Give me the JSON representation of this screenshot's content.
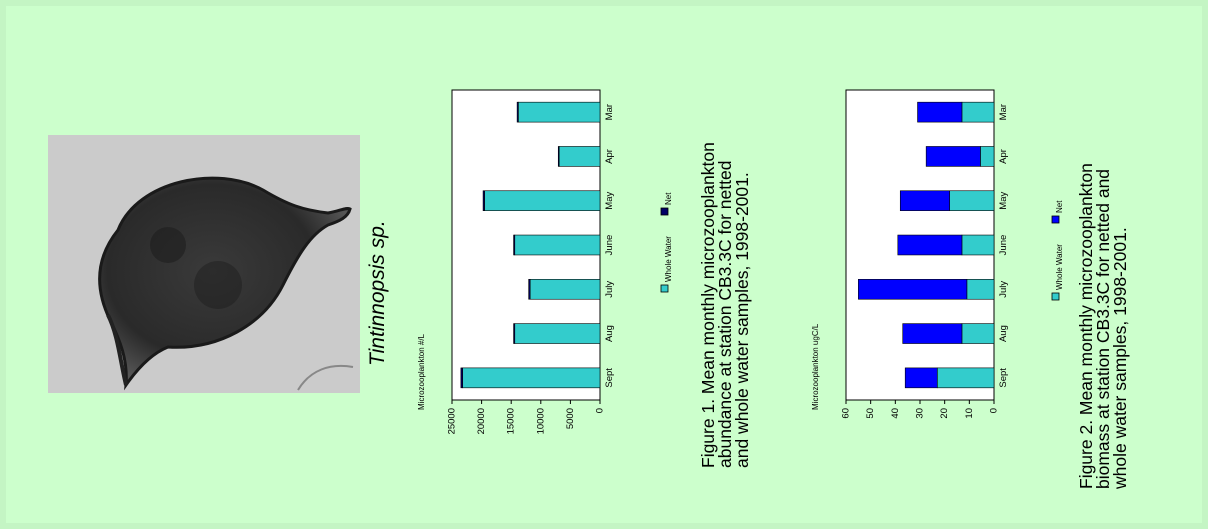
{
  "species_label": "Tintinnopsis sp.",
  "figure1": {
    "caption_lines": [
      "Figure 1. Mean monthly microzooplankton",
      "abundance at station CB3.3C for netted",
      "and whole water samples, 1998-2001."
    ]
  },
  "figure2": {
    "caption_lines": [
      "Figure 2. Mean monthly microzooplankton",
      "biomass at station CB3.3C for netted and",
      "whole water samples, 1998-2001."
    ]
  },
  "chart_data": [
    {
      "type": "bar",
      "stacked": true,
      "orientation": "horizontal",
      "categories": [
        "Mar",
        "Apr",
        "May",
        "June",
        "July",
        "Aug",
        "Sept"
      ],
      "series": [
        {
          "name": "Whole Water",
          "values": [
            13800,
            6900,
            19500,
            14400,
            11800,
            14400,
            23200
          ],
          "color": "#33cccc"
        },
        {
          "name": "Net",
          "values": [
            200,
            150,
            250,
            200,
            250,
            200,
            300
          ],
          "color": "#000066"
        }
      ],
      "xlabel": "",
      "ylabel": "Microzooplankton #/L",
      "ylim": [
        0,
        25000
      ],
      "yticks": [
        0,
        5000,
        10000,
        15000,
        20000,
        25000
      ],
      "legend": "bottom",
      "grid": false
    },
    {
      "type": "bar",
      "stacked": true,
      "orientation": "horizontal",
      "categories": [
        "Mar",
        "Apr",
        "May",
        "June",
        "July",
        "Aug",
        "Sept"
      ],
      "series": [
        {
          "name": "Whole Water",
          "values": [
            13,
            5.5,
            18,
            13,
            11,
            13,
            23
          ],
          "color": "#33cccc"
        },
        {
          "name": "Net",
          "values": [
            18,
            22,
            20,
            26,
            44,
            24,
            13
          ],
          "color": "#0000ff"
        }
      ],
      "xlabel": "",
      "ylabel": "Microzooplankton ugC/L",
      "ylim": [
        0,
        60
      ],
      "yticks": [
        0,
        10,
        20,
        30,
        40,
        50,
        60
      ],
      "legend": "bottom",
      "grid": false
    }
  ]
}
